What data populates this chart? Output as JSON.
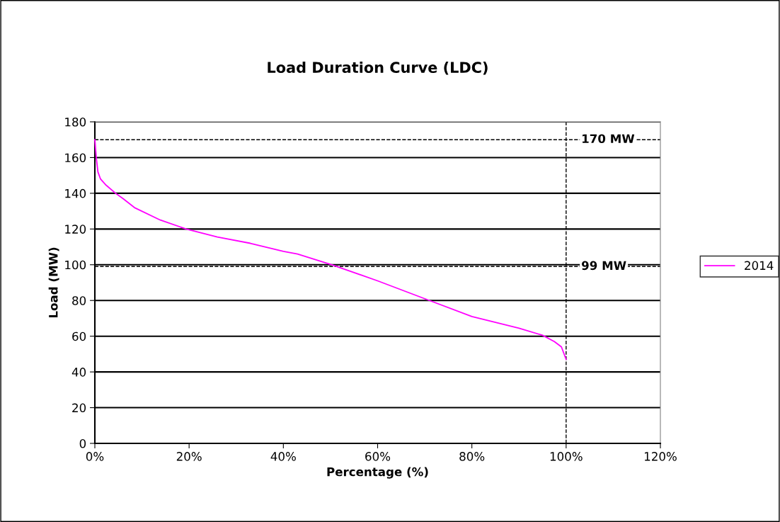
{
  "chart_data": {
    "type": "line",
    "title": "Load Duration Curve (LDC)",
    "xlabel": "Percentage (%)",
    "ylabel": "Load (MW)",
    "series": [
      {
        "name": "2014",
        "color": "#ff00ff",
        "x": [
          0,
          0.3,
          0.65,
          1.2,
          2.4,
          4.4,
          6,
          8.4,
          13.9,
          19.4,
          26,
          33,
          40,
          43,
          50.3,
          60,
          71,
          80,
          90,
          95,
          97.5,
          99,
          100
        ],
        "values": [
          170,
          160,
          152,
          148,
          144.5,
          140,
          137,
          132,
          125,
          120,
          115.5,
          112,
          107.5,
          106,
          100,
          91,
          80,
          71,
          64.5,
          60.5,
          57,
          54,
          47
        ]
      }
    ],
    "xlim": [
      0,
      120
    ],
    "xticks": [
      {
        "value": 0,
        "label": "0%"
      },
      {
        "value": 20,
        "label": "20%"
      },
      {
        "value": 40,
        "label": "40%"
      },
      {
        "value": 60,
        "label": "60%"
      },
      {
        "value": 80,
        "label": "80%"
      },
      {
        "value": 100,
        "label": "100%"
      },
      {
        "value": 120,
        "label": "120%"
      }
    ],
    "ylim": [
      0,
      180
    ],
    "yticks": [
      0,
      20,
      40,
      60,
      80,
      100,
      120,
      140,
      160,
      180
    ],
    "grid": "y",
    "legend": "right",
    "marker": "none",
    "line_style": "solid",
    "ref_lines": [
      {
        "axis": "y",
        "value": 170,
        "label": "170 MW",
        "line_style": "dashed",
        "color": "#000000"
      },
      {
        "axis": "y",
        "value": 99,
        "label": "99 MW",
        "line_style": "dashed",
        "color": "#000000"
      },
      {
        "axis": "x",
        "value": 100,
        "line_style": "dashed",
        "color": "#000000"
      }
    ]
  }
}
